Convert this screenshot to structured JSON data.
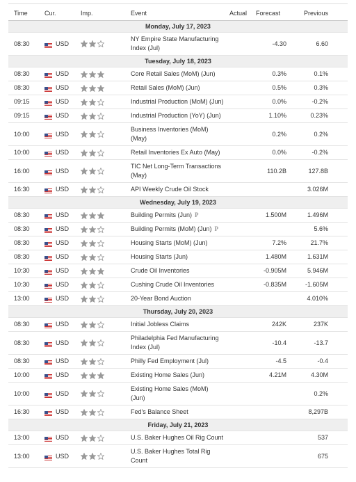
{
  "header": {
    "columns": [
      "Time",
      "Cur.",
      "Imp.",
      "Event",
      "Actual",
      "Forecast",
      "Previous"
    ]
  },
  "days": [
    {
      "date": "Monday, July 17, 2023",
      "events": [
        {
          "time": "08:30",
          "currency": "USD",
          "importance": 2,
          "event": "NY Empire State Manufacturing Index (Jul)",
          "forecast": "-4.30",
          "previous": "6.60"
        }
      ]
    },
    {
      "date": "Tuesday, July 18, 2023",
      "events": [
        {
          "time": "08:30",
          "currency": "USD",
          "importance": 3,
          "event": "Core Retail Sales (MoM) (Jun)",
          "forecast": "0.3%",
          "previous": "0.1%"
        },
        {
          "time": "08:30",
          "currency": "USD",
          "importance": 3,
          "event": "Retail Sales (MoM) (Jun)",
          "forecast": "0.5%",
          "previous": "0.3%"
        },
        {
          "time": "09:15",
          "currency": "USD",
          "importance": 2,
          "event": "Industrial Production (MoM) (Jun)",
          "forecast": "0.0%",
          "previous": "-0.2%"
        },
        {
          "time": "09:15",
          "currency": "USD",
          "importance": 2,
          "event": "Industrial Production (YoY) (Jun)",
          "forecast": "1.10%",
          "previous": "0.23%"
        },
        {
          "time": "10:00",
          "currency": "USD",
          "importance": 2,
          "event": "Business Inventories (MoM) (May)",
          "forecast": "0.2%",
          "previous": "0.2%"
        },
        {
          "time": "10:00",
          "currency": "USD",
          "importance": 2,
          "event": "Retail Inventories Ex Auto (May)",
          "forecast": "0.0%",
          "previous": "-0.2%"
        },
        {
          "time": "16:00",
          "currency": "USD",
          "importance": 2,
          "event": "TIC Net Long-Term Transactions (May)",
          "forecast": "110.2B",
          "previous": "127.8B"
        },
        {
          "time": "16:30",
          "currency": "USD",
          "importance": 2,
          "event": "API Weekly Crude Oil Stock",
          "previous": "3.026M"
        }
      ]
    },
    {
      "date": "Wednesday, July 19, 2023",
      "events": [
        {
          "time": "08:30",
          "currency": "USD",
          "importance": 3,
          "event": "Building Permits (Jun)",
          "note": "P",
          "forecast": "1.500M",
          "previous": "1.496M"
        },
        {
          "time": "08:30",
          "currency": "USD",
          "importance": 2,
          "event": "Building Permits (MoM) (Jun)",
          "note": "P",
          "previous": "5.6%"
        },
        {
          "time": "08:30",
          "currency": "USD",
          "importance": 2,
          "event": "Housing Starts (MoM) (Jun)",
          "forecast": "7.2%",
          "previous": "21.7%"
        },
        {
          "time": "08:30",
          "currency": "USD",
          "importance": 2,
          "event": "Housing Starts (Jun)",
          "forecast": "1.480M",
          "previous": "1.631M"
        },
        {
          "time": "10:30",
          "currency": "USD",
          "importance": 3,
          "event": "Crude Oil Inventories",
          "forecast": "-0.905M",
          "previous": "5.946M"
        },
        {
          "time": "10:30",
          "currency": "USD",
          "importance": 2,
          "event": "Cushing Crude Oil Inventories",
          "forecast": "-0.835M",
          "previous": "-1.605M"
        },
        {
          "time": "13:00",
          "currency": "USD",
          "importance": 2,
          "event": "20-Year Bond Auction",
          "previous": "4.010%"
        }
      ]
    },
    {
      "date": "Thursday, July 20, 2023",
      "events": [
        {
          "time": "08:30",
          "currency": "USD",
          "importance": 2,
          "event": "Initial Jobless Claims",
          "forecast": "242K",
          "previous": "237K"
        },
        {
          "time": "08:30",
          "currency": "USD",
          "importance": 2,
          "event": "Philadelphia Fed Manufacturing Index (Jul)",
          "forecast": "-10.4",
          "previous": "-13.7"
        },
        {
          "time": "08:30",
          "currency": "USD",
          "importance": 2,
          "event": "Philly Fed Employment (Jul)",
          "forecast": "-4.5",
          "previous": "-0.4"
        },
        {
          "time": "10:00",
          "currency": "USD",
          "importance": 3,
          "event": "Existing Home Sales (Jun)",
          "forecast": "4.21M",
          "previous": "4.30M"
        },
        {
          "time": "10:00",
          "currency": "USD",
          "importance": 2,
          "event": "Existing Home Sales (MoM) (Jun)",
          "previous": "0.2%"
        },
        {
          "time": "16:30",
          "currency": "USD",
          "importance": 2,
          "event": "Fed's Balance Sheet",
          "previous": "8,297B"
        }
      ]
    },
    {
      "date": "Friday, July 21, 2023",
      "events": [
        {
          "time": "13:00",
          "currency": "USD",
          "importance": 2,
          "event": "U.S. Baker Hughes Oil Rig Count",
          "previous": "537"
        },
        {
          "time": "13:00",
          "currency": "USD",
          "importance": 2,
          "event": "U.S. Baker Hughes Total Rig Count",
          "previous": "675"
        }
      ]
    }
  ]
}
